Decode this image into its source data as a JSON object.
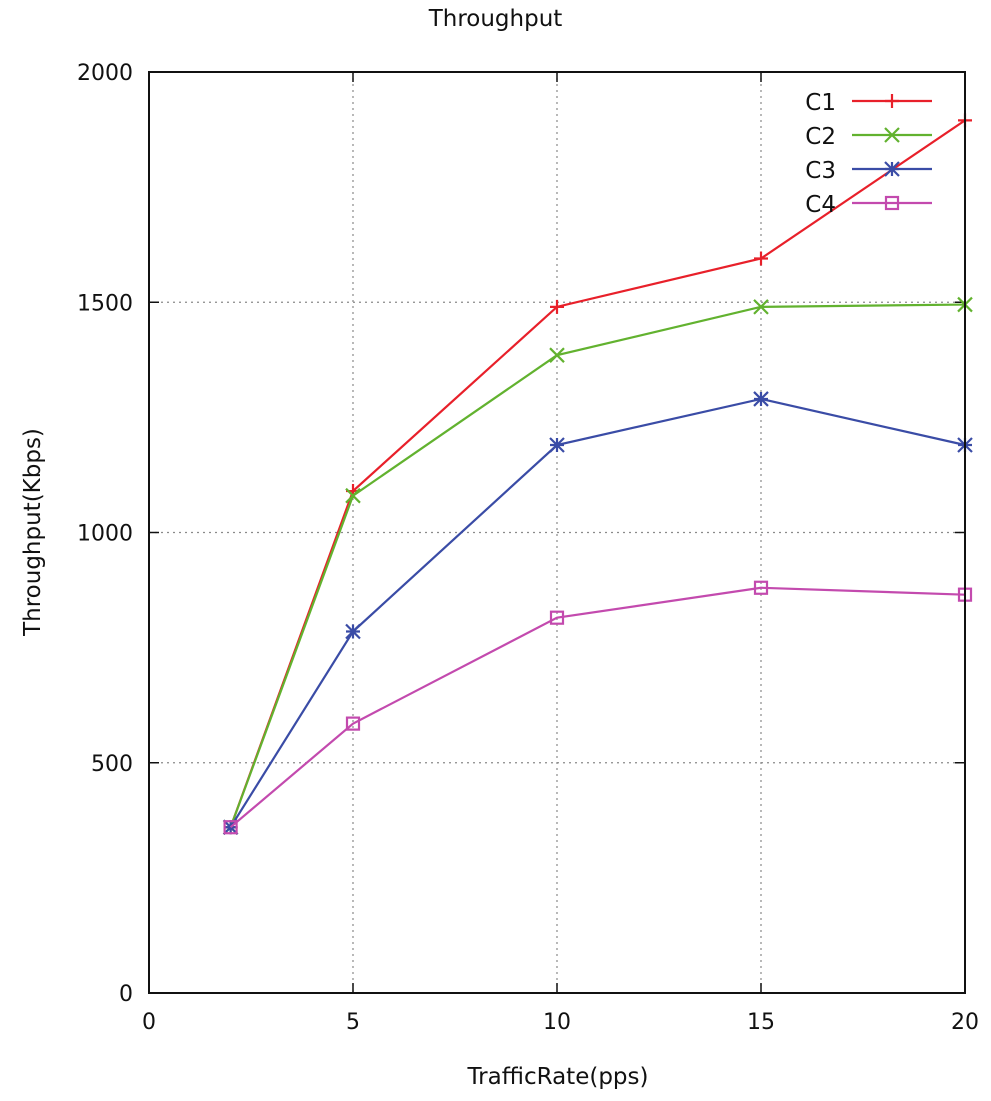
{
  "chart_data": {
    "type": "line",
    "title": "Throughput",
    "xlabel": "TrafficRate(pps)",
    "ylabel": "Throughput(Kbps)",
    "xlim": [
      0,
      20
    ],
    "ylim": [
      0,
      2000
    ],
    "xticks": [
      0,
      5,
      10,
      15,
      20
    ],
    "yticks": [
      0,
      500,
      1000,
      1500,
      2000
    ],
    "grid": true,
    "legend_position": "top-right",
    "x": [
      2,
      5,
      10,
      15,
      20
    ],
    "series": [
      {
        "name": "C1",
        "color": "#e8202a",
        "marker": "plus",
        "values": [
          360,
          1090,
          1490,
          1595,
          1895
        ]
      },
      {
        "name": "C2",
        "color": "#62b22f",
        "marker": "cross",
        "values": [
          360,
          1080,
          1385,
          1490,
          1495
        ]
      },
      {
        "name": "C3",
        "color": "#3a4ca6",
        "marker": "asterisk",
        "values": [
          360,
          785,
          1190,
          1290,
          1190
        ]
      },
      {
        "name": "C4",
        "color": "#c34aae",
        "marker": "square",
        "values": [
          360,
          585,
          815,
          880,
          865
        ]
      }
    ]
  }
}
